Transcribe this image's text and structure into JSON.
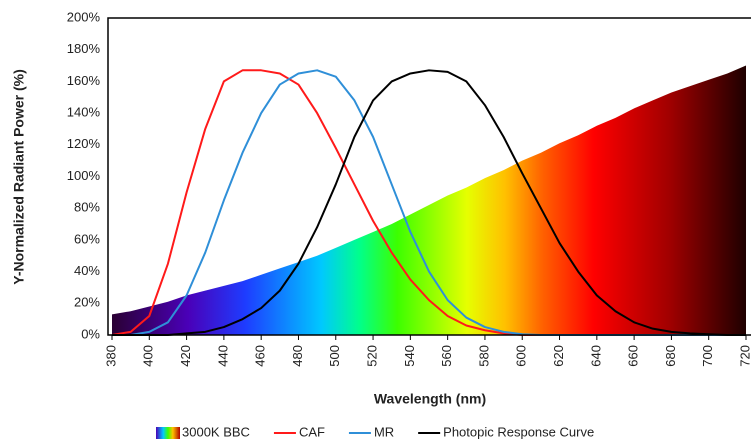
{
  "chart_data": {
    "type": "line",
    "x_label": "Wavelength (nm)",
    "y_label": "Y-Normalized Radiant Power (%)",
    "x": [
      380,
      390,
      400,
      410,
      420,
      430,
      440,
      450,
      460,
      470,
      480,
      490,
      500,
      510,
      520,
      530,
      540,
      550,
      560,
      570,
      580,
      590,
      600,
      610,
      620,
      630,
      640,
      650,
      660,
      670,
      680,
      690,
      700,
      710,
      720
    ],
    "series": [
      {
        "name": "3000K BBC",
        "style": "area",
        "color": "spectrum",
        "values": [
          13,
          15,
          18,
          21,
          25,
          28,
          31,
          34,
          38,
          42,
          46,
          50,
          55,
          60,
          65,
          70,
          76,
          82,
          88,
          93,
          99,
          104,
          110,
          115,
          121,
          126,
          132,
          137,
          143,
          148,
          153,
          157,
          161,
          165,
          170
        ]
      },
      {
        "name": "CAF",
        "color": "#ff1a1a",
        "values": [
          0,
          2,
          12,
          45,
          90,
          130,
          160,
          167,
          167,
          165,
          158,
          140,
          118,
          95,
          72,
          52,
          35,
          22,
          12,
          6,
          3,
          1,
          0,
          0,
          0,
          0,
          0,
          0,
          0,
          0,
          0,
          0,
          0,
          0,
          0
        ]
      },
      {
        "name": "MR",
        "color": "#2f8fd8",
        "values": [
          0,
          0,
          2,
          8,
          25,
          52,
          85,
          115,
          140,
          158,
          165,
          167,
          163,
          148,
          125,
          95,
          65,
          40,
          22,
          11,
          5,
          2,
          0.5,
          0,
          0,
          0,
          0,
          0,
          0,
          0,
          0,
          0,
          0,
          0,
          0
        ]
      },
      {
        "name": "Photopic Response Curve",
        "color": "#000000",
        "values": [
          0,
          0,
          0,
          0,
          1,
          2,
          5,
          10,
          17,
          28,
          45,
          68,
          95,
          125,
          148,
          160,
          165,
          167,
          166,
          160,
          145,
          125,
          102,
          80,
          58,
          40,
          25,
          15,
          8,
          4,
          2,
          1,
          0.5,
          0,
          0
        ]
      }
    ],
    "xlim": [
      380,
      720
    ],
    "xticks": [
      380,
      400,
      420,
      440,
      460,
      480,
      500,
      520,
      540,
      560,
      580,
      600,
      620,
      640,
      660,
      680,
      700,
      720
    ],
    "ylim": [
      0,
      200
    ],
    "yticks": [
      {
        "value": 0,
        "label": "0%"
      },
      {
        "value": 20,
        "label": "20%"
      },
      {
        "value": 40,
        "label": "40%"
      },
      {
        "value": 60,
        "label": "60%"
      },
      {
        "value": 80,
        "label": "80%"
      },
      {
        "value": 100,
        "label": "100%"
      },
      {
        "value": 120,
        "label": "120%"
      },
      {
        "value": 140,
        "label": "140%"
      },
      {
        "value": 160,
        "label": "160%"
      },
      {
        "value": 180,
        "label": "180%"
      },
      {
        "value": 200,
        "label": "200%"
      }
    ],
    "grid": false
  }
}
